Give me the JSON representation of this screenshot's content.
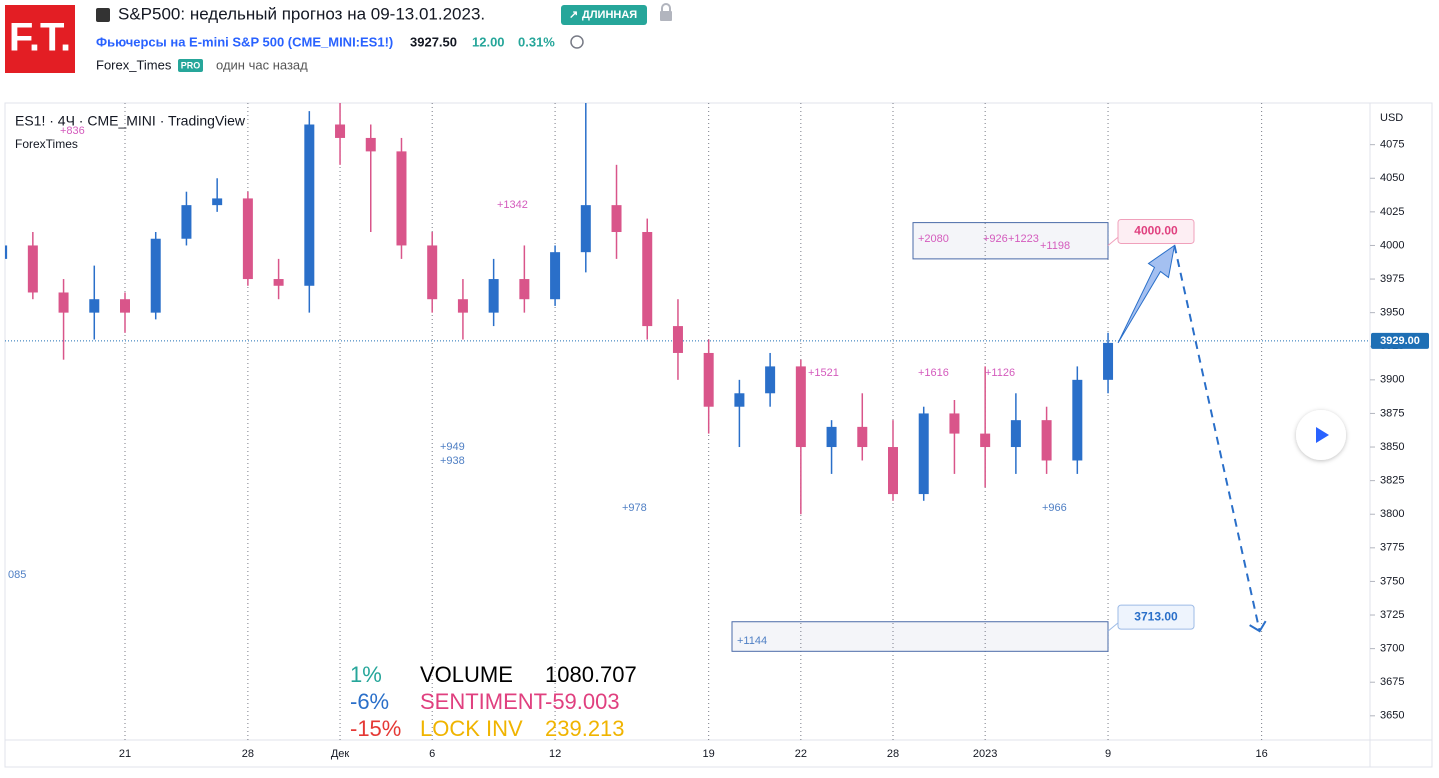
{
  "header": {
    "logo": "F.T.",
    "title": "S&P500: недельный прогноз на 09-13.01.2023.",
    "badge": "ДЛИННАЯ",
    "symbol": "Фьючерсы на E-mini S&P 500 (CME_MINI:ES1!)",
    "price": "3927.50",
    "change": "12.00",
    "change_pct": "0.31%",
    "author": "Forex_Times",
    "author_badge": "PRO",
    "time": "один час назад"
  },
  "chart_data": {
    "type": "candlestick",
    "legend_title": "ES1! · 4Ч · CME_MINI · TradingView",
    "legend_author": "ForexTimes",
    "currency": "USD",
    "categories": [
      null,
      null,
      null,
      null,
      "21",
      null,
      null,
      null,
      "28",
      null,
      null,
      "Дек",
      null,
      null,
      "6",
      null,
      null,
      null,
      "12",
      null,
      null,
      null,
      null,
      "19",
      null,
      null,
      "22",
      null,
      null,
      "28",
      null,
      null,
      "2023",
      null,
      null,
      null,
      "9",
      null,
      null,
      null,
      null,
      "16"
    ],
    "open": [
      3990,
      4000,
      3965,
      3950,
      3960,
      3950,
      4005,
      4030,
      4035,
      3975,
      3970,
      4090,
      4080,
      4070,
      4000,
      3960,
      3950,
      3975,
      3960,
      3995,
      4030,
      4010,
      3940,
      3920,
      3880,
      3890,
      3910,
      3850,
      3865,
      3850,
      3815,
      3875,
      3860,
      3850,
      3870,
      3840,
      3900,
      null,
      null,
      null,
      null,
      null
    ],
    "high": [
      4050,
      4010,
      3975,
      3985,
      3965,
      4010,
      4040,
      4050,
      4040,
      3990,
      4100,
      4110,
      4090,
      4080,
      4010,
      3975,
      3990,
      4000,
      4000,
      4110,
      4060,
      4020,
      3960,
      3930,
      3900,
      3920,
      3915,
      3870,
      3890,
      3870,
      3880,
      3885,
      3910,
      3890,
      3880,
      3910,
      3935,
      null,
      null,
      null,
      null,
      null
    ],
    "low": [
      3975,
      3960,
      3915,
      3930,
      3935,
      3945,
      4000,
      4025,
      3970,
      3960,
      3950,
      4060,
      4010,
      3990,
      3950,
      3930,
      3940,
      3950,
      3955,
      3980,
      3990,
      3930,
      3900,
      3860,
      3850,
      3880,
      3800,
      3830,
      3840,
      3810,
      3810,
      3830,
      3820,
      3830,
      3830,
      3830,
      3890,
      null,
      null,
      null,
      null,
      null
    ],
    "close": [
      4000,
      3965,
      3950,
      3960,
      3950,
      4005,
      4030,
      4035,
      3975,
      3970,
      4090,
      4080,
      4070,
      4000,
      3960,
      3950,
      3975,
      3960,
      3995,
      4030,
      4010,
      3940,
      3920,
      3880,
      3890,
      3910,
      3850,
      3865,
      3850,
      3815,
      3875,
      3860,
      3850,
      3870,
      3840,
      3900,
      3927.5,
      null,
      null,
      null,
      null,
      null
    ],
    "up_color": "#2a6fc9",
    "down_color": "#d9558a",
    "ylim": [
      3632,
      4106
    ],
    "yticks": [
      3650,
      3675,
      3700,
      3725,
      3750,
      3775,
      3800,
      3825,
      3850,
      3875,
      3900,
      3925,
      3950,
      3975,
      4000,
      4025,
      4050,
      4075
    ],
    "grid": true,
    "last_price": {
      "value": 3929,
      "label": "3929.00"
    },
    "forecast": {
      "target_up": 4000,
      "target_up_label": "4000.00",
      "target_down": 3713,
      "target_down_label": "3713.00"
    },
    "zones": [
      {
        "top": 4017,
        "bottom": 3990
      },
      {
        "top": 3720,
        "bottom": 3698
      }
    ],
    "annotations": [
      {
        "text": "+836",
        "color": "#d45bbd"
      },
      {
        "text": "+1342",
        "color": "#d45bbd"
      },
      {
        "text": "+949",
        "color": "#4f7fc4"
      },
      {
        "text": "+938",
        "color": "#4f7fc4"
      },
      {
        "text": "+978",
        "color": "#4f7fc4"
      },
      {
        "text": "+2080",
        "color": "#d45bbd"
      },
      {
        "text": "+926",
        "color": "#d45bbd"
      },
      {
        "text": "+1223",
        "color": "#d45bbd"
      },
      {
        "text": "+1198",
        "color": "#d45bbd"
      },
      {
        "text": "+1616",
        "color": "#d45bbd"
      },
      {
        "text": "+1126",
        "color": "#d45bbd"
      },
      {
        "text": "+1521",
        "color": "#d45bbd"
      },
      {
        "text": "+966",
        "color": "#4f7fc4"
      },
      {
        "text": "+1144",
        "color": "#4f7fc4"
      },
      {
        "text": "085",
        "color": "#4f7fc4"
      }
    ],
    "stats": [
      [
        "1%",
        "VOLUME",
        "1080.707"
      ],
      [
        "-6%",
        "SENTIMENT",
        "-59.003"
      ],
      [
        "-15%",
        "LOCK INV",
        "239.213"
      ]
    ],
    "stats_colors": [
      [
        "#26a69a",
        "#000000",
        "#000000"
      ],
      [
        "#2a6fc9",
        "#e0407f",
        "#e0407f"
      ],
      [
        "#e53935",
        "#f0b400",
        "#f0b400"
      ]
    ]
  }
}
